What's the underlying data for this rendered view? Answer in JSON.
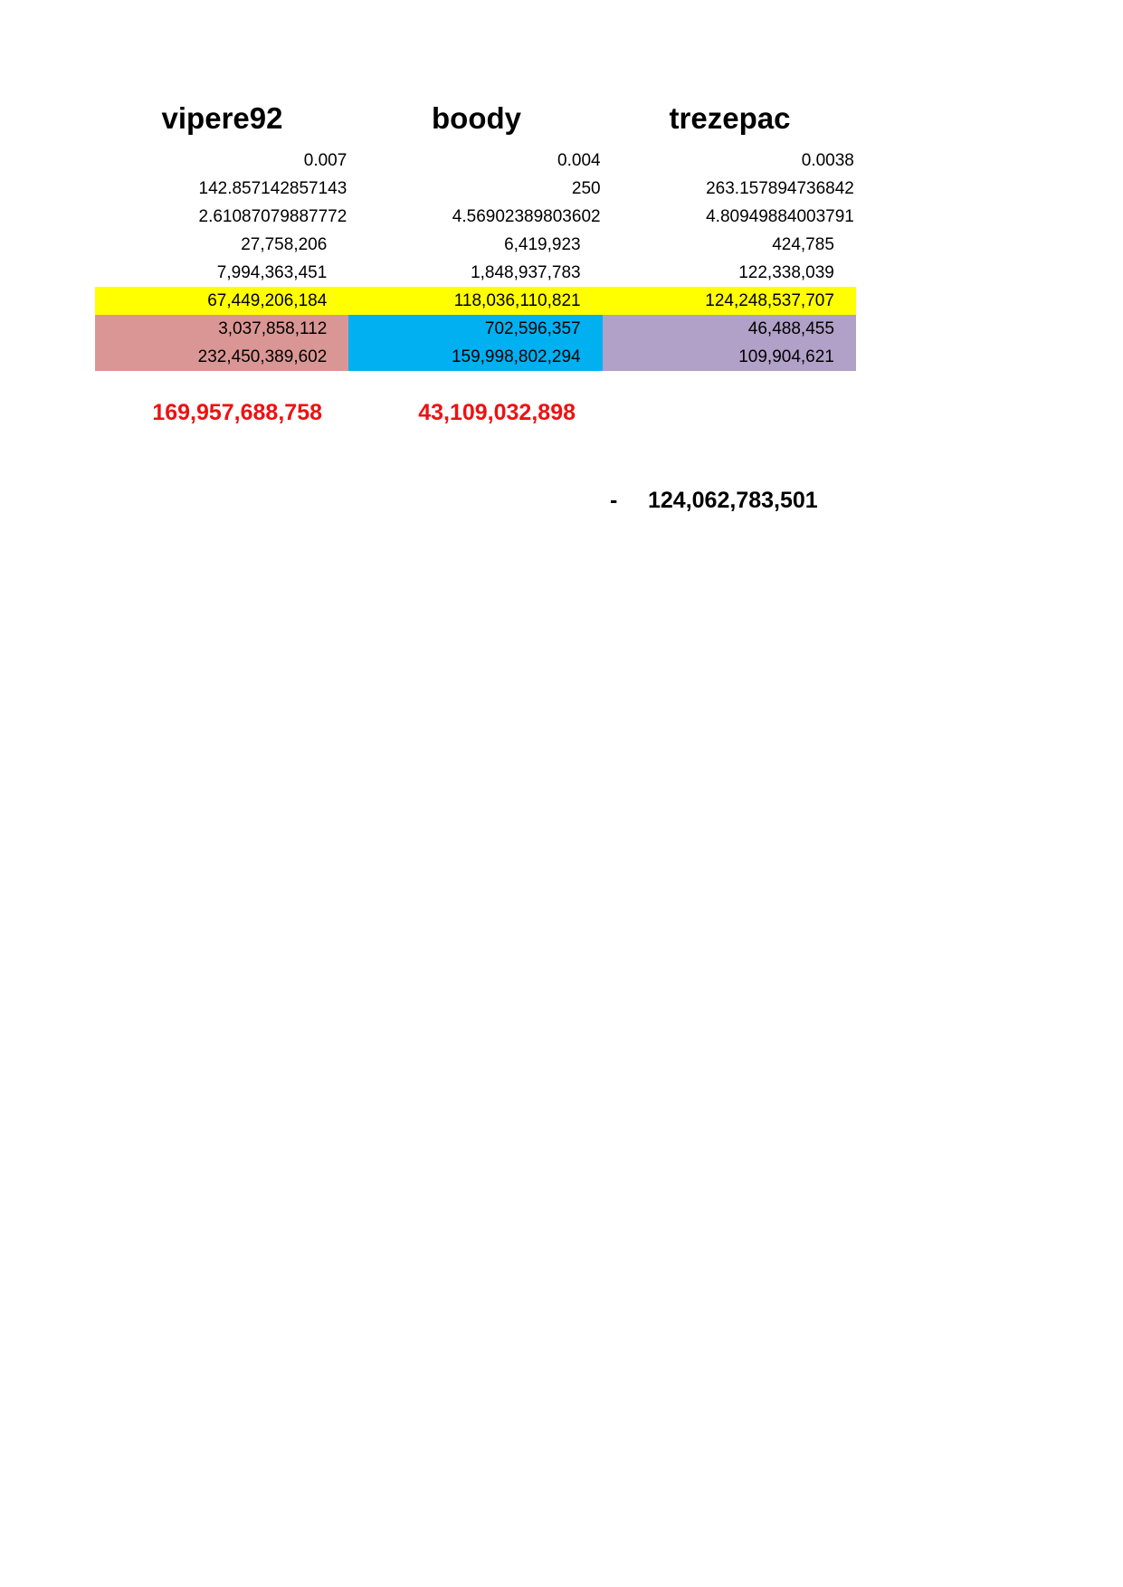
{
  "headers": [
    "vipere92",
    "boody",
    "trezepac"
  ],
  "rows": [
    {
      "values": [
        "0.007",
        "0.004",
        "0.0038"
      ]
    },
    {
      "values": [
        "142.857142857143",
        "250",
        "263.157894736842"
      ]
    },
    {
      "values": [
        "2.61087079887772",
        "4.56902389803602",
        "4.80949884003791"
      ]
    },
    {
      "values": [
        "27,758,206",
        "6,419,923",
        "424,785"
      ]
    },
    {
      "values": [
        "7,994,363,451",
        "1,848,937,783",
        "122,338,039"
      ]
    },
    {
      "values": [
        "67,449,206,184",
        "118,036,110,821",
        "124,248,537,707"
      ]
    },
    {
      "values": [
        "3,037,858,112",
        "702,596,357",
        "46,488,455"
      ]
    },
    {
      "values": [
        "232,450,389,602",
        "159,998,802,294",
        "109,904,621"
      ]
    }
  ],
  "totals": [
    "169,957,688,758",
    "43,109,032,898"
  ],
  "final": {
    "sign": "-",
    "value": "124,062,783,501"
  },
  "colors": {
    "highlight_row": "#ffff00",
    "col1_fill": "#da9694",
    "col2_fill": "#00b0f0",
    "col3_fill": "#b1a0c7",
    "totals_text": "#ee1111"
  }
}
